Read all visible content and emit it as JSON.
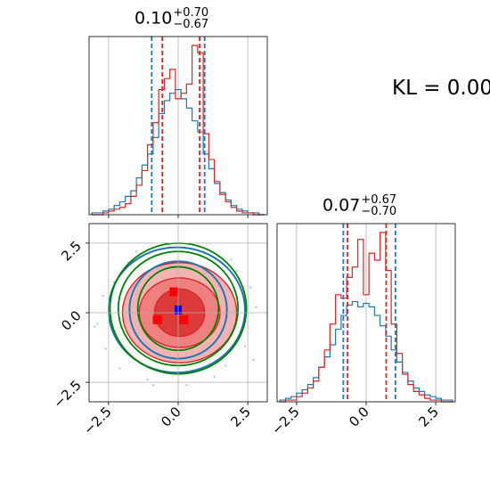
{
  "chart_data": {
    "type": "corner",
    "annotation": "KL = 0.00",
    "colors": {
      "blue": "#1f77b4",
      "red": "#d62728",
      "green": "#008000",
      "fill_red": "#f08080"
    },
    "panels": {
      "hist_x": {
        "type": "histogram",
        "title": {
          "median": "0.10",
          "plus": "+0.70",
          "minus": "−0.67"
        },
        "xlim": [
          -3.2,
          3.2
        ],
        "ticks": [
          -2.5,
          0.0,
          2.5
        ],
        "grid": true,
        "quantiles_blue": [
          -0.95,
          0.95
        ],
        "quantiles_red": [
          -0.57,
          0.77
        ],
        "bin_centers": [
          -3.0,
          -2.8,
          -2.6,
          -2.4,
          -2.2,
          -2.0,
          -1.8,
          -1.6,
          -1.4,
          -1.2,
          -1.0,
          -0.8,
          -0.6,
          -0.4,
          -0.2,
          0.0,
          0.2,
          0.4,
          0.6,
          0.8,
          1.0,
          1.2,
          1.4,
          1.6,
          1.8,
          2.0,
          2.2,
          2.4,
          2.6,
          2.8,
          3.0
        ],
        "series": [
          {
            "name": "blue",
            "values": [
              0.01,
              0.01,
              0.02,
              0.03,
              0.05,
              0.07,
              0.1,
              0.13,
              0.2,
              0.27,
              0.33,
              0.42,
              0.55,
              0.62,
              0.66,
              0.68,
              0.63,
              0.58,
              0.51,
              0.45,
              0.33,
              0.25,
              0.17,
              0.12,
              0.08,
              0.05,
              0.03,
              0.02,
              0.01,
              0.01,
              0.0
            ]
          },
          {
            "name": "red",
            "values": [
              0.0,
              0.0,
              0.01,
              0.02,
              0.03,
              0.04,
              0.06,
              0.1,
              0.16,
              0.24,
              0.38,
              0.5,
              0.68,
              0.74,
              0.79,
              0.63,
              0.66,
              0.71,
              0.92,
              0.88,
              0.44,
              0.3,
              0.18,
              0.11,
              0.07,
              0.04,
              0.02,
              0.01,
              0.01,
              0.0,
              0.0
            ]
          }
        ]
      },
      "hist_y": {
        "type": "histogram",
        "title": {
          "median": "0.07",
          "plus": "+0.67",
          "minus": "−0.70"
        },
        "xlim": [
          -3.2,
          3.2
        ],
        "ticks": [
          -2.5,
          0.0,
          2.5
        ],
        "tick_labels": [
          "−2.5",
          "0.0",
          "2.5"
        ],
        "grid": true,
        "quantiles_blue": [
          -0.82,
          1.05
        ],
        "quantiles_red": [
          -0.67,
          0.72
        ],
        "bin_centers": [
          -3.0,
          -2.8,
          -2.6,
          -2.4,
          -2.2,
          -2.0,
          -1.8,
          -1.6,
          -1.4,
          -1.2,
          -1.0,
          -0.8,
          -0.6,
          -0.4,
          -0.2,
          0.0,
          0.2,
          0.4,
          0.6,
          0.8,
          1.0,
          1.2,
          1.4,
          1.6,
          1.8,
          2.0,
          2.2,
          2.4,
          2.6,
          2.8,
          3.0
        ],
        "series": [
          {
            "name": "blue",
            "values": [
              0.01,
              0.02,
              0.03,
              0.05,
              0.07,
              0.1,
              0.14,
              0.2,
              0.26,
              0.33,
              0.42,
              0.5,
              0.56,
              0.58,
              0.55,
              0.57,
              0.55,
              0.5,
              0.44,
              0.38,
              0.3,
              0.23,
              0.17,
              0.12,
              0.08,
              0.06,
              0.04,
              0.03,
              0.02,
              0.01,
              0.01
            ]
          },
          {
            "name": "red",
            "values": [
              0.0,
              0.01,
              0.01,
              0.03,
              0.05,
              0.08,
              0.12,
              0.2,
              0.3,
              0.45,
              0.62,
              0.6,
              0.72,
              0.78,
              0.94,
              0.62,
              0.86,
              0.82,
              0.98,
              0.76,
              0.45,
              0.28,
              0.16,
              0.1,
              0.06,
              0.04,
              0.02,
              0.01,
              0.01,
              0.0,
              0.0
            ]
          }
        ]
      },
      "contour_xy": {
        "type": "2d-contour",
        "xlim": [
          -3.2,
          3.2
        ],
        "ylim": [
          -3.2,
          3.2
        ],
        "ticks": [
          -2.5,
          0.0,
          2.5
        ],
        "tick_labels": [
          "−2.5",
          "0.0",
          "2.5"
        ],
        "grid": true,
        "green_ellipses": [
          {
            "cx": 0.0,
            "cy": 0.15,
            "rx": 2.45,
            "ry": 2.35
          },
          {
            "cx": 0.0,
            "cy": 0.15,
            "rx": 2.15,
            "ry": 2.05
          },
          {
            "cx": 0.0,
            "cy": 0.15,
            "rx": 1.45,
            "ry": 1.5
          }
        ],
        "blue_contours": [
          {
            "cx": -0.05,
            "cy": 0.1,
            "rx": 2.45,
            "ry": 2.25
          },
          {
            "cx": 0.0,
            "cy": 0.1,
            "rx": 1.75,
            "ry": 1.75
          }
        ],
        "red_contours": [
          {
            "cx": 0.05,
            "cy": 0.0,
            "rx": 2.05,
            "ry": 1.8
          },
          {
            "cx": 0.05,
            "cy": 0.0,
            "rx": 1.45,
            "ry": 1.25
          },
          {
            "cx": 0.05,
            "cy": 0.0,
            "rx": 0.9,
            "ry": 0.85
          }
        ],
        "red_blocks": [
          {
            "x": -0.75,
            "y": -0.25
          },
          {
            "x": 0.2,
            "y": -0.25
          },
          {
            "x": -0.15,
            "y": 0.75
          }
        ],
        "blue_block": {
          "x": 0.0,
          "y": 0.1
        },
        "scatter_points": [
          [
            -2.9,
            -0.4
          ],
          [
            2.7,
            -1.7
          ],
          [
            -2.3,
            1.1
          ],
          [
            1.9,
            1.9
          ],
          [
            -1.1,
            -2.4
          ],
          [
            2.2,
            -0.8
          ],
          [
            -2.6,
            -1.3
          ],
          [
            1.3,
            -2.3
          ],
          [
            -0.4,
            2.5
          ],
          [
            2.6,
            0.9
          ],
          [
            -1.8,
            1.8
          ],
          [
            0.9,
            2.2
          ],
          [
            -2.1,
            -2.0
          ],
          [
            2.8,
            0.2
          ],
          [
            -0.9,
            -2.6
          ],
          [
            1.7,
            -1.9
          ],
          [
            -2.7,
            0.6
          ],
          [
            0.3,
            -2.6
          ],
          [
            -1.5,
            2.2
          ],
          [
            2.1,
            1.5
          ],
          [
            -3.0,
            -0.5
          ],
          [
            2.4,
            -1.2
          ]
        ]
      }
    }
  }
}
